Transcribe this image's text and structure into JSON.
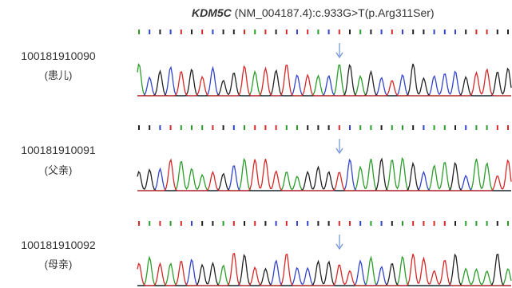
{
  "header": {
    "gene": "KDM5C",
    "variant": " (NM_004187.4):c.933G>T(p.Arg311Ser)"
  },
  "samples": [
    {
      "id": "100181910090",
      "label": "(患儿)"
    },
    {
      "id": "100181910091",
      "label": "(父亲)"
    },
    {
      "id": "100181910092",
      "label": "(母亲)"
    }
  ]
}
